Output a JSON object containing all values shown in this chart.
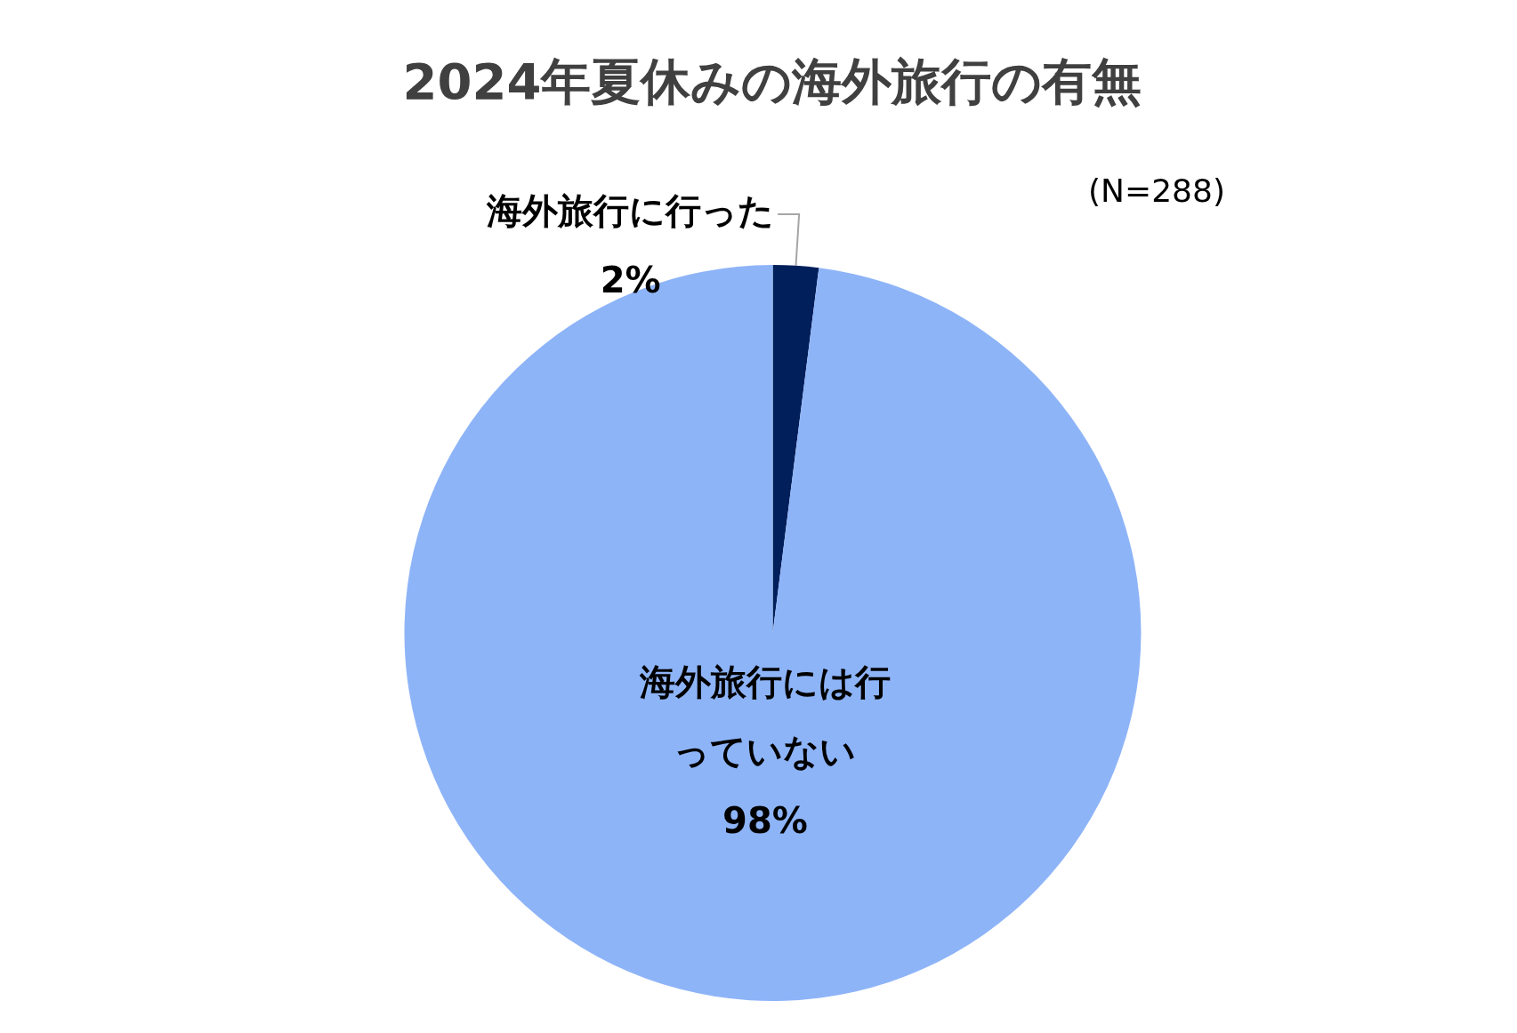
{
  "chart_data": {
    "type": "pie",
    "title": "2024年夏休みの海外旅行の有無",
    "categories": [
      "海外旅行に行った",
      "海外旅行には行っていない"
    ],
    "values": [
      2,
      98
    ],
    "value_labels": [
      "2%",
      "98%"
    ],
    "colors": [
      "#001f5b",
      "#8eb4f8"
    ],
    "annotations": [
      "(N=288)"
    ],
    "legend": false
  }
}
